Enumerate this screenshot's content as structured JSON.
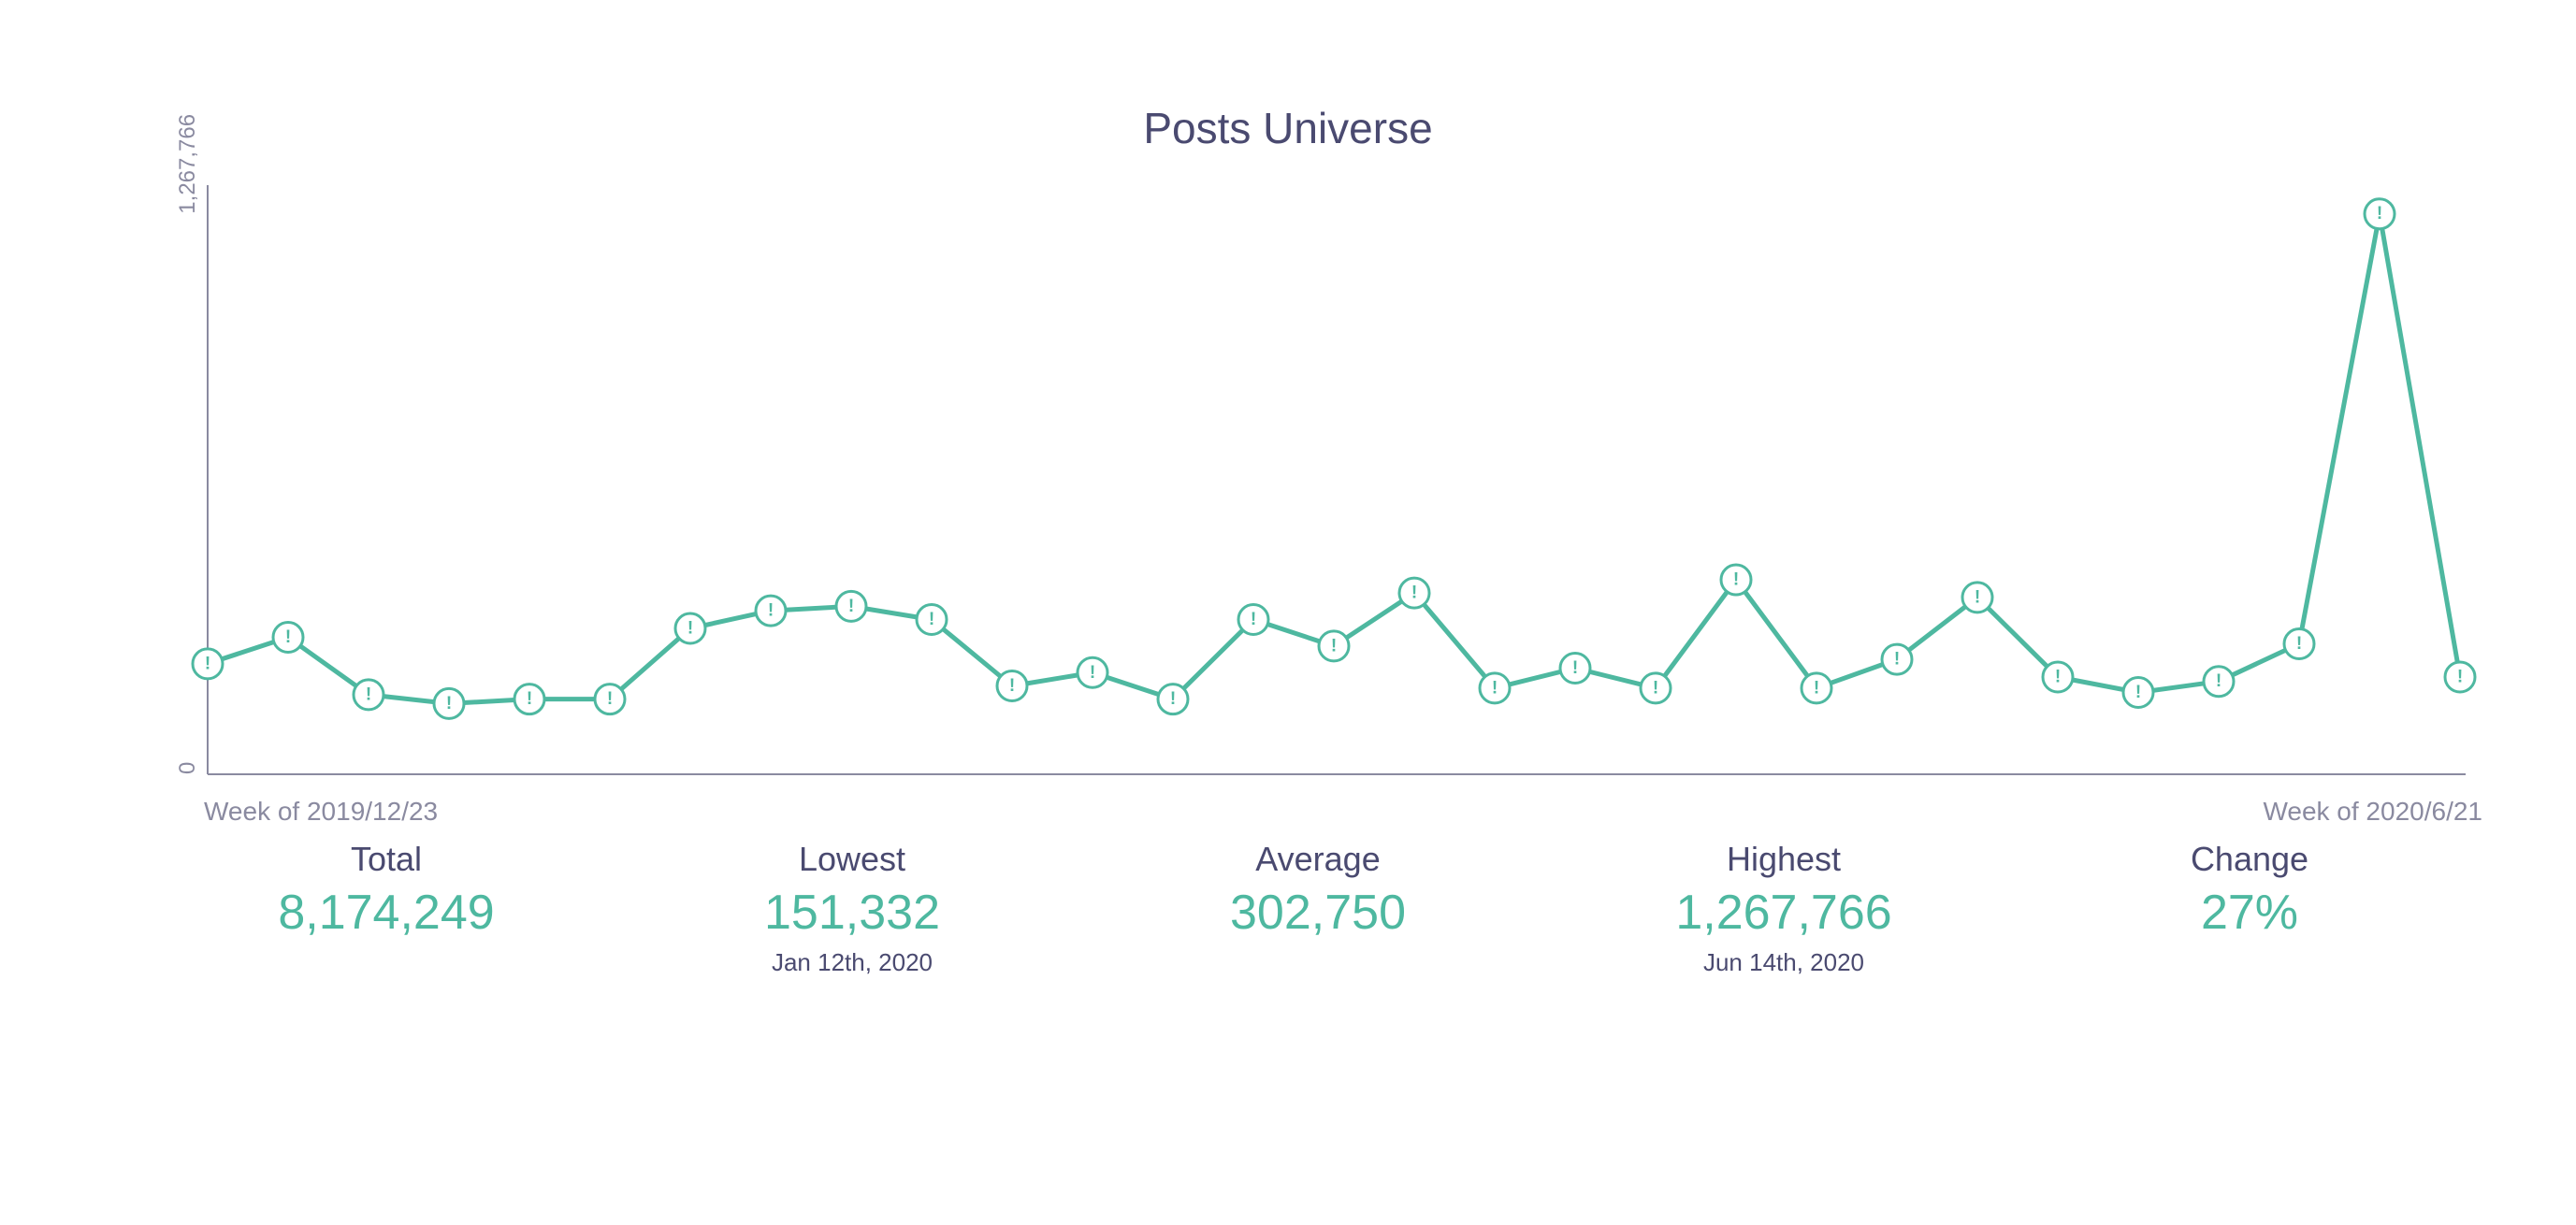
{
  "title": "Posts Universe",
  "chart": {
    "type": "line",
    "line_color": "#4eb8a0",
    "line_width": 5,
    "marker_fill": "#ffffff",
    "marker_stroke": "#4eb8a0",
    "marker_stroke_width": 3,
    "marker_radius": 16,
    "marker_glyph": "!",
    "marker_glyph_color": "#4eb8a0",
    "marker_glyph_fontsize": 19,
    "axis_color": "#8a8aa0",
    "axis_width": 2,
    "y_ticks": [
      0,
      1267766
    ],
    "y_tick_labels": [
      "0",
      "1,267,766"
    ],
    "y_tick_fontsize": 24,
    "y_tick_color": "#8a8aa0",
    "ylim": [
      0,
      1320000
    ],
    "values": [
      250000,
      310000,
      180000,
      160000,
      170000,
      170000,
      330000,
      370000,
      380000,
      350000,
      200000,
      230000,
      170000,
      350000,
      290000,
      410000,
      195000,
      240000,
      195000,
      440000,
      195000,
      260000,
      400000,
      220000,
      185000,
      210000,
      295000,
      1267766,
      220000
    ],
    "x_start_label": "Week of 2019/12/23",
    "x_end_label": "Week of 2020/6/21",
    "x_label_fontsize": 28,
    "x_label_color": "#8a8aa0",
    "background_color": "#ffffff"
  },
  "stats": {
    "total": {
      "label": "Total",
      "value": "8,174,249",
      "date": ""
    },
    "lowest": {
      "label": "Lowest",
      "value": "151,332",
      "date": "Jan 12th, 2020"
    },
    "average": {
      "label": "Average",
      "value": "302,750",
      "date": ""
    },
    "highest": {
      "label": "Highest",
      "value": "1,267,766",
      "date": "Jun 14th, 2020"
    },
    "change": {
      "label": "Change",
      "value": "27%",
      "date": ""
    }
  },
  "colors": {
    "title": "#4a4a70",
    "stat_label": "#4a4a70",
    "stat_value": "#4eb8a0",
    "stat_date": "#4a4a70"
  }
}
